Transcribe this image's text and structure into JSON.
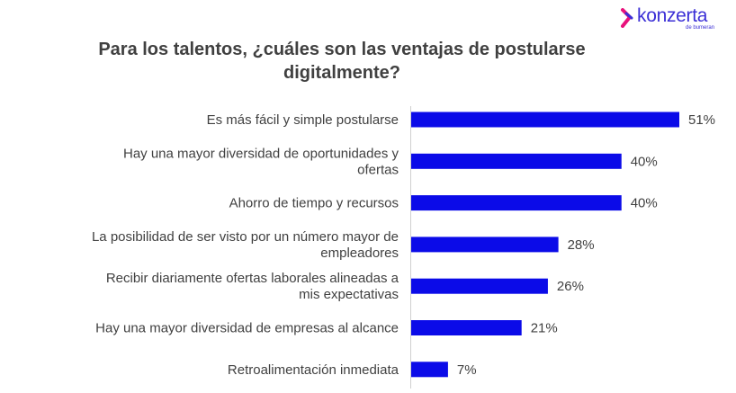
{
  "brand": {
    "name": "konzerta",
    "tagline": "de bumeran",
    "color": "#3b2fd6"
  },
  "chart_data": {
    "type": "bar",
    "orientation": "horizontal",
    "title": "Para los talentos, ¿cuáles son las ventajas de postularse digitalmente?",
    "categories": [
      [
        "Es más fácil y simple postularse"
      ],
      [
        "Hay una mayor diversidad de oportunidades y",
        "ofertas"
      ],
      [
        "Ahorro de tiempo y recursos"
      ],
      [
        "La posibilidad de ser visto por un número mayor de",
        "empleadores"
      ],
      [
        "Recibir diariamente ofertas laborales alineadas a",
        "mis expectativas"
      ],
      [
        "Hay una mayor diversidad de empresas al alcance"
      ],
      [
        "Retroalimentación inmediata"
      ]
    ],
    "values": [
      51,
      40,
      40,
      28,
      26,
      21,
      7
    ],
    "value_labels": [
      "51%",
      "40%",
      "40%",
      "28%",
      "26%",
      "21%",
      "7%"
    ],
    "value_unit": "%",
    "bar_color": "#0b0be8",
    "xlim": [
      0,
      51
    ],
    "grid": false
  }
}
